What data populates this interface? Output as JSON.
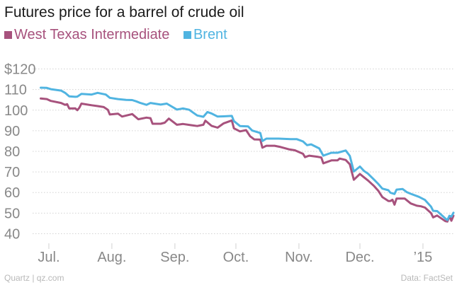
{
  "colors": {
    "wti": "#a7527d",
    "brent": "#50b4e1",
    "grid": "#d2d2d2",
    "tick_text": "#888888"
  },
  "footer": {
    "source_left": "Quartz | qz.com",
    "source_right": "Data: FactSet"
  },
  "chart_data": {
    "type": "line",
    "title": "Futures price for a barrel of crude oil",
    "xlabel": "",
    "ylabel": "",
    "xlim": [
      "2014-06-23",
      "2015-01-16"
    ],
    "ylim": [
      35,
      125
    ],
    "grid": true,
    "legend_position": "top-left",
    "y_ticks": [
      {
        "value": 120,
        "label": "$120"
      },
      {
        "value": 110,
        "label": "110"
      },
      {
        "value": 100,
        "label": "100"
      },
      {
        "value": 90,
        "label": "90"
      },
      {
        "value": 80,
        "label": "80"
      },
      {
        "value": 70,
        "label": "70"
      },
      {
        "value": 60,
        "label": "60"
      },
      {
        "value": 50,
        "label": "50"
      },
      {
        "value": 40,
        "label": "40"
      }
    ],
    "x_ticks": [
      {
        "date": "2014-07-01",
        "label": "Jul."
      },
      {
        "date": "2014-08-01",
        "label": "Aug."
      },
      {
        "date": "2014-09-01",
        "label": "Sep."
      },
      {
        "date": "2014-10-01",
        "label": "Oct."
      },
      {
        "date": "2014-11-01",
        "label": "Nov."
      },
      {
        "date": "2014-12-01",
        "label": "Dec."
      },
      {
        "date": "2015-01-01",
        "label": "’15"
      }
    ],
    "series": [
      {
        "name": "West Texas Intermediate",
        "color": "#a7527d",
        "points": [
          [
            "2014-06-27",
            105.7
          ],
          [
            "2014-06-30",
            105.4
          ],
          [
            "2014-07-02",
            104.5
          ],
          [
            "2014-07-07",
            103.5
          ],
          [
            "2014-07-09",
            102.6
          ],
          [
            "2014-07-10",
            102.9
          ],
          [
            "2014-07-11",
            100.8
          ],
          [
            "2014-07-14",
            100.9
          ],
          [
            "2014-07-15",
            100.0
          ],
          [
            "2014-07-16",
            101.2
          ],
          [
            "2014-07-17",
            103.2
          ],
          [
            "2014-07-22",
            102.4
          ],
          [
            "2014-07-25",
            102.0
          ],
          [
            "2014-07-28",
            101.5
          ],
          [
            "2014-07-30",
            100.2
          ],
          [
            "2014-07-31",
            97.9
          ],
          [
            "2014-08-04",
            98.3
          ],
          [
            "2014-08-06",
            96.9
          ],
          [
            "2014-08-11",
            98.1
          ],
          [
            "2014-08-14",
            95.6
          ],
          [
            "2014-08-18",
            96.4
          ],
          [
            "2014-08-20",
            96.1
          ],
          [
            "2014-08-21",
            93.4
          ],
          [
            "2014-08-25",
            93.4
          ],
          [
            "2014-08-27",
            93.9
          ],
          [
            "2014-08-29",
            95.9
          ],
          [
            "2014-09-02",
            92.9
          ],
          [
            "2014-09-05",
            93.3
          ],
          [
            "2014-09-09",
            92.7
          ],
          [
            "2014-09-12",
            92.3
          ],
          [
            "2014-09-15",
            92.9
          ],
          [
            "2014-09-16",
            94.9
          ],
          [
            "2014-09-19",
            92.4
          ],
          [
            "2014-09-22",
            91.5
          ],
          [
            "2014-09-25",
            93.6
          ],
          [
            "2014-09-29",
            95.0
          ],
          [
            "2014-09-30",
            91.2
          ],
          [
            "2014-10-03",
            89.7
          ],
          [
            "2014-10-06",
            90.3
          ],
          [
            "2014-10-08",
            87.3
          ],
          [
            "2014-10-10",
            85.8
          ],
          [
            "2014-10-13",
            85.7
          ],
          [
            "2014-10-14",
            81.8
          ],
          [
            "2014-10-16",
            82.7
          ],
          [
            "2014-10-20",
            82.7
          ],
          [
            "2014-10-23",
            82.1
          ],
          [
            "2014-10-27",
            81.0
          ],
          [
            "2014-10-30",
            80.5
          ],
          [
            "2014-11-03",
            78.8
          ],
          [
            "2014-11-04",
            77.2
          ],
          [
            "2014-11-06",
            77.9
          ],
          [
            "2014-11-10",
            77.4
          ],
          [
            "2014-11-12",
            77.0
          ],
          [
            "2014-11-13",
            74.2
          ],
          [
            "2014-11-17",
            75.6
          ],
          [
            "2014-11-20",
            75.6
          ],
          [
            "2014-11-21",
            76.5
          ],
          [
            "2014-11-24",
            75.8
          ],
          [
            "2014-11-26",
            73.7
          ],
          [
            "2014-11-28",
            66.2
          ],
          [
            "2014-12-01",
            69.0
          ],
          [
            "2014-12-03",
            67.4
          ],
          [
            "2014-12-05",
            65.8
          ],
          [
            "2014-12-08",
            63.1
          ],
          [
            "2014-12-10",
            60.9
          ],
          [
            "2014-12-12",
            57.8
          ],
          [
            "2014-12-15",
            55.9
          ],
          [
            "2014-12-16",
            55.9
          ],
          [
            "2014-12-17",
            56.5
          ],
          [
            "2014-12-18",
            54.1
          ],
          [
            "2014-12-19",
            57.1
          ],
          [
            "2014-12-23",
            57.1
          ],
          [
            "2014-12-26",
            54.7
          ],
          [
            "2014-12-29",
            53.6
          ],
          [
            "2014-12-31",
            53.3
          ],
          [
            "2015-01-02",
            52.7
          ],
          [
            "2015-01-05",
            50.0
          ],
          [
            "2015-01-06",
            47.9
          ],
          [
            "2015-01-08",
            48.8
          ],
          [
            "2015-01-12",
            46.1
          ],
          [
            "2015-01-13",
            45.9
          ],
          [
            "2015-01-14",
            48.5
          ],
          [
            "2015-01-15",
            46.3
          ],
          [
            "2015-01-16",
            48.7
          ]
        ]
      },
      {
        "name": "Brent",
        "color": "#50b4e1",
        "points": [
          [
            "2014-06-27",
            110.9
          ],
          [
            "2014-06-30",
            110.8
          ],
          [
            "2014-07-02",
            110.2
          ],
          [
            "2014-07-07",
            109.5
          ],
          [
            "2014-07-09",
            108.4
          ],
          [
            "2014-07-11",
            106.7
          ],
          [
            "2014-07-14",
            106.5
          ],
          [
            "2014-07-15",
            106.6
          ],
          [
            "2014-07-17",
            107.9
          ],
          [
            "2014-07-22",
            107.6
          ],
          [
            "2014-07-25",
            108.4
          ],
          [
            "2014-07-29",
            107.6
          ],
          [
            "2014-07-31",
            106.0
          ],
          [
            "2014-08-04",
            105.4
          ],
          [
            "2014-08-08",
            105.0
          ],
          [
            "2014-08-11",
            104.9
          ],
          [
            "2014-08-13",
            104.3
          ],
          [
            "2014-08-15",
            103.5
          ],
          [
            "2014-08-18",
            102.6
          ],
          [
            "2014-08-20",
            103.5
          ],
          [
            "2014-08-25",
            102.7
          ],
          [
            "2014-08-28",
            103.2
          ],
          [
            "2014-09-02",
            100.3
          ],
          [
            "2014-09-05",
            100.8
          ],
          [
            "2014-09-08",
            100.2
          ],
          [
            "2014-09-10",
            98.8
          ],
          [
            "2014-09-12",
            97.4
          ],
          [
            "2014-09-15",
            96.8
          ],
          [
            "2014-09-17",
            99.1
          ],
          [
            "2014-09-19",
            98.4
          ],
          [
            "2014-09-22",
            96.9
          ],
          [
            "2014-09-25",
            97.0
          ],
          [
            "2014-09-29",
            97.2
          ],
          [
            "2014-09-30",
            94.7
          ],
          [
            "2014-10-03",
            92.3
          ],
          [
            "2014-10-07",
            92.1
          ],
          [
            "2014-10-09",
            90.1
          ],
          [
            "2014-10-13",
            88.9
          ],
          [
            "2014-10-14",
            85.0
          ],
          [
            "2014-10-16",
            86.2
          ],
          [
            "2014-10-20",
            86.2
          ],
          [
            "2014-10-22",
            86.2
          ],
          [
            "2014-10-24",
            86.1
          ],
          [
            "2014-10-28",
            85.9
          ],
          [
            "2014-10-31",
            85.9
          ],
          [
            "2014-11-03",
            84.8
          ],
          [
            "2014-11-05",
            83.0
          ],
          [
            "2014-11-07",
            83.4
          ],
          [
            "2014-11-11",
            81.4
          ],
          [
            "2014-11-13",
            77.9
          ],
          [
            "2014-11-17",
            79.3
          ],
          [
            "2014-11-20",
            79.3
          ],
          [
            "2014-11-24",
            80.4
          ],
          [
            "2014-11-26",
            77.8
          ],
          [
            "2014-11-28",
            70.2
          ],
          [
            "2014-12-01",
            72.6
          ],
          [
            "2014-12-03",
            70.5
          ],
          [
            "2014-12-05",
            69.1
          ],
          [
            "2014-12-08",
            66.2
          ],
          [
            "2014-12-10",
            64.2
          ],
          [
            "2014-12-12",
            61.9
          ],
          [
            "2014-12-15",
            61.1
          ],
          [
            "2014-12-16",
            59.9
          ],
          [
            "2014-12-18",
            59.3
          ],
          [
            "2014-12-19",
            61.4
          ],
          [
            "2014-12-22",
            61.7
          ],
          [
            "2014-12-24",
            60.2
          ],
          [
            "2014-12-26",
            59.4
          ],
          [
            "2014-12-30",
            57.9
          ],
          [
            "2015-01-02",
            56.4
          ],
          [
            "2015-01-05",
            53.1
          ],
          [
            "2015-01-06",
            51.1
          ],
          [
            "2015-01-08",
            50.96
          ],
          [
            "2015-01-12",
            47.4
          ],
          [
            "2015-01-13",
            46.6
          ],
          [
            "2015-01-14",
            48.7
          ],
          [
            "2015-01-15",
            48.3
          ],
          [
            "2015-01-16",
            50.2
          ]
        ]
      }
    ]
  }
}
